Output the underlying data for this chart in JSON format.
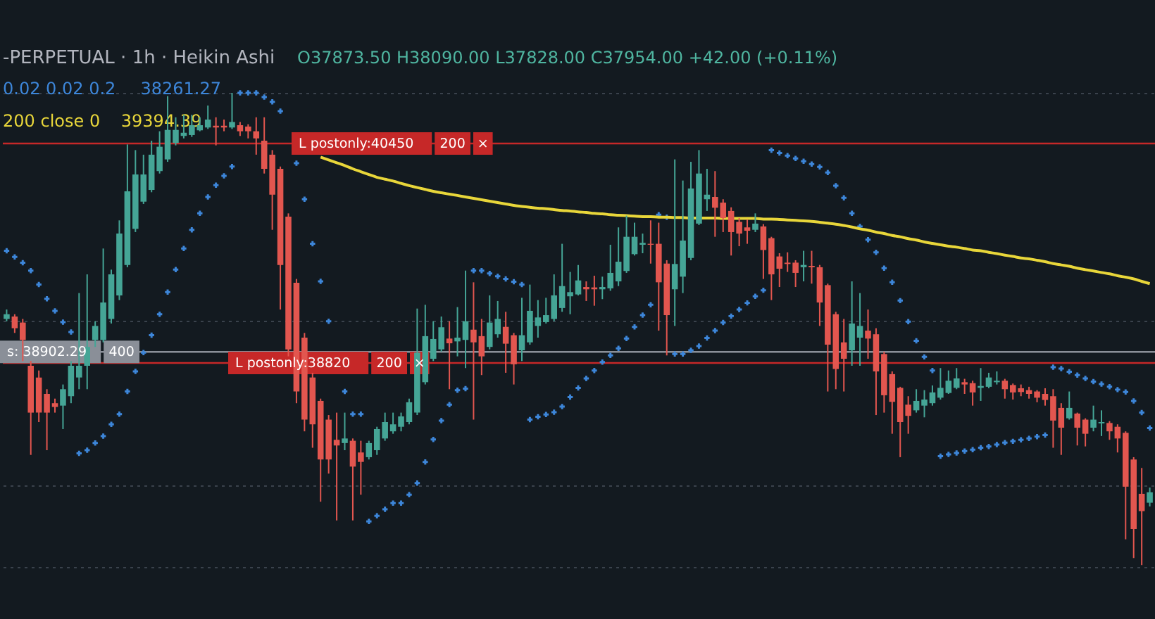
{
  "chart_data": {
    "type": "candlestick",
    "title": "-PERPETUAL · 1h · Heikin Ashi",
    "subtitle": "O37873.50 H38090.00 L37828.00 C37954.00 +42.00 (+0.11%)",
    "categories": [
      null,
      null,
      null,
      null,
      null,
      null,
      null,
      null,
      null,
      null,
      null,
      null,
      null,
      null,
      null,
      null,
      null,
      null,
      null,
      null,
      null,
      null,
      null,
      null,
      null,
      null,
      null,
      null,
      null,
      null,
      null,
      null,
      null,
      null,
      null,
      null,
      null,
      null,
      null,
      null,
      null,
      null,
      null,
      null,
      null,
      null,
      null,
      null,
      null,
      null,
      null,
      null,
      null,
      null,
      null,
      null,
      null,
      null,
      null,
      null,
      null,
      null,
      null,
      null,
      null,
      null,
      null,
      null,
      null,
      null,
      null,
      null,
      null,
      null,
      null,
      null,
      null,
      null,
      null,
      null,
      null,
      null,
      null,
      null,
      null,
      null,
      null,
      null,
      null,
      null,
      null,
      null,
      null,
      null,
      null,
      null,
      null,
      null,
      null,
      null,
      null,
      null,
      null,
      null,
      null,
      null,
      null,
      null,
      null,
      null,
      null,
      null,
      null,
      null,
      null,
      null,
      null,
      null,
      null,
      null,
      null,
      null,
      null,
      null,
      null,
      null,
      null,
      null,
      null,
      null,
      null,
      null,
      null,
      null,
      null,
      null,
      null,
      null,
      null,
      null,
      null,
      null,
      null
    ],
    "ohlc": [
      [
        39147,
        39217,
        39130,
        39182
      ],
      [
        39165,
        39182,
        39043,
        39078
      ],
      [
        39120,
        39147,
        38834,
        38991
      ],
      [
        38799,
        38834,
        38137,
        38451
      ],
      [
        38712,
        38764,
        38381,
        38451
      ],
      [
        38590,
        38625,
        38172,
        38451
      ],
      [
        38521,
        38555,
        38451,
        38493
      ],
      [
        38503,
        38660,
        38329,
        38625
      ],
      [
        38573,
        38834,
        38521,
        38799
      ],
      [
        38712,
        39339,
        38625,
        38799
      ],
      [
        38799,
        39478,
        38625,
        38939
      ],
      [
        38991,
        39130,
        38939,
        39095
      ],
      [
        38991,
        39670,
        38973,
        39269
      ],
      [
        39147,
        39513,
        39113,
        39478
      ],
      [
        39322,
        39879,
        39287,
        39781
      ],
      [
        39548,
        40443,
        39531,
        40095
      ],
      [
        39816,
        40401,
        39792,
        40220
      ],
      [
        40018,
        40367,
        40001,
        40220
      ],
      [
        40105,
        40471,
        40088,
        40367
      ],
      [
        40245,
        40541,
        40227,
        40426
      ],
      [
        40332,
        40802,
        40314,
        40551
      ],
      [
        40454,
        40645,
        40436,
        40551
      ],
      [
        40506,
        40663,
        40488,
        40530
      ],
      [
        40513,
        40663,
        40499,
        40586
      ],
      [
        40548,
        40645,
        40541,
        40586
      ],
      [
        40569,
        40732,
        40558,
        40628
      ],
      [
        40582,
        40645,
        40436,
        40569
      ],
      [
        40582,
        40628,
        40541,
        40569
      ],
      [
        40569,
        40826,
        40558,
        40610
      ],
      [
        40586,
        40610,
        40506,
        40541
      ],
      [
        40576,
        40593,
        40488,
        40541
      ],
      [
        40541,
        40645,
        40367,
        40488
      ],
      [
        40471,
        40645,
        40227,
        40262
      ],
      [
        40367,
        40401,
        39809,
        40070
      ],
      [
        40262,
        40279,
        39217,
        39548
      ],
      [
        39907,
        39931,
        38869,
        38921
      ],
      [
        39416,
        39444,
        38521,
        38608
      ],
      [
        39008,
        39043,
        38312,
        38399
      ],
      [
        38712,
        38747,
        38190,
        38364
      ],
      [
        38538,
        38555,
        37789,
        38103
      ],
      [
        38399,
        38433,
        37998,
        38103
      ],
      [
        38249,
        38451,
        37650,
        38207
      ],
      [
        38225,
        38451,
        38172,
        38259
      ],
      [
        38242,
        38259,
        37650,
        38050
      ],
      [
        38155,
        38242,
        37841,
        38085
      ],
      [
        38120,
        38242,
        38103,
        38225
      ],
      [
        38172,
        38346,
        38137,
        38329
      ],
      [
        38259,
        38451,
        38242,
        38381
      ],
      [
        38312,
        38451,
        38294,
        38364
      ],
      [
        38346,
        38451,
        38312,
        38423
      ],
      [
        38381,
        38555,
        38364,
        38528
      ],
      [
        38451,
        39224,
        38433,
        38897
      ],
      [
        38677,
        39252,
        38660,
        39019
      ],
      [
        38851,
        39130,
        38834,
        38998
      ],
      [
        38921,
        39165,
        38904,
        39085
      ],
      [
        39001,
        39130,
        38625,
        38966
      ],
      [
        38980,
        39235,
        38869,
        39008
      ],
      [
        38991,
        39506,
        38782,
        39130
      ],
      [
        39067,
        39419,
        38399,
        38973
      ],
      [
        39019,
        39147,
        38730,
        38869
      ],
      [
        38939,
        39322,
        38921,
        39120
      ],
      [
        39033,
        39280,
        39008,
        39147
      ],
      [
        39088,
        39200,
        38747,
        38963
      ],
      [
        39026,
        39043,
        38660,
        38810
      ],
      [
        38914,
        39304,
        38834,
        39026
      ],
      [
        38973,
        39402,
        38956,
        39207
      ],
      [
        39095,
        39287,
        39008,
        39158
      ],
      [
        39123,
        39304,
        39113,
        39175
      ],
      [
        39147,
        39478,
        39130,
        39322
      ],
      [
        39228,
        39705,
        39200,
        39391
      ],
      [
        39315,
        39496,
        39182,
        39346
      ],
      [
        39329,
        39548,
        39322,
        39433
      ],
      [
        39384,
        39426,
        39280,
        39367
      ],
      [
        39381,
        39468,
        39245,
        39367
      ],
      [
        39367,
        39461,
        39294,
        39384
      ],
      [
        39374,
        39698,
        39356,
        39489
      ],
      [
        39426,
        39827,
        39391,
        39572
      ],
      [
        39503,
        39914,
        39489,
        39757
      ],
      [
        39628,
        39862,
        39618,
        39757
      ],
      [
        39698,
        39781,
        39635,
        39712
      ],
      [
        39705,
        39879,
        39558,
        39698
      ],
      [
        39705,
        39862,
        39060,
        39419
      ],
      [
        39558,
        39583,
        38876,
        39175
      ],
      [
        39367,
        40332,
        39095,
        39555
      ],
      [
        39461,
        40175,
        39339,
        39729
      ],
      [
        39600,
        40314,
        39583,
        40116
      ],
      [
        39855,
        40401,
        39844,
        40227
      ],
      [
        40036,
        40262,
        39949,
        40070
      ],
      [
        40053,
        40245,
        39757,
        39973
      ],
      [
        40011,
        40036,
        39792,
        39896
      ],
      [
        39949,
        39976,
        39618,
        39792
      ],
      [
        39868,
        39896,
        39687,
        39781
      ],
      [
        39827,
        39886,
        39705,
        39802
      ],
      [
        39809,
        39931,
        39792,
        39855
      ],
      [
        39834,
        39851,
        39444,
        39659
      ],
      [
        39747,
        39757,
        39287,
        39478
      ],
      [
        39611,
        39635,
        39384,
        39520
      ],
      [
        39565,
        39642,
        39496,
        39555
      ],
      [
        39565,
        39583,
        39384,
        39489
      ],
      [
        39531,
        39653,
        39426,
        39548
      ],
      [
        39541,
        39653,
        39409,
        39531
      ],
      [
        39531,
        39548,
        39095,
        39269
      ],
      [
        39398,
        39409,
        38608,
        38956
      ],
      [
        39182,
        39200,
        38625,
        38775
      ],
      [
        38973,
        39147,
        38608,
        38851
      ],
      [
        38914,
        39426,
        38799,
        39113
      ],
      [
        39008,
        39339,
        38799,
        39095
      ],
      [
        39060,
        39217,
        38851,
        39001
      ],
      [
        39033,
        39078,
        38433,
        38757
      ],
      [
        38886,
        38904,
        38451,
        38580
      ],
      [
        38737,
        38757,
        38294,
        38531
      ],
      [
        38635,
        38643,
        38120,
        38381
      ],
      [
        38510,
        38573,
        38294,
        38427
      ],
      [
        38468,
        38625,
        38451,
        38538
      ],
      [
        38503,
        38618,
        38416,
        38548
      ],
      [
        38521,
        38653,
        38503,
        38601
      ],
      [
        38562,
        38782,
        38548,
        38635
      ],
      [
        38597,
        38764,
        38590,
        38688
      ],
      [
        38635,
        38782,
        38625,
        38705
      ],
      [
        38677,
        38702,
        38590,
        38660
      ],
      [
        38670,
        38688,
        38503,
        38601
      ],
      [
        38635,
        38782,
        38538,
        38649
      ],
      [
        38643,
        38747,
        38632,
        38712
      ],
      [
        38677,
        38757,
        38660,
        38688
      ],
      [
        38688,
        38702,
        38555,
        38625
      ],
      [
        38656,
        38667,
        38548,
        38601
      ],
      [
        38632,
        38660,
        38573,
        38604
      ],
      [
        38618,
        38643,
        38555,
        38590
      ],
      [
        38608,
        38618,
        38528,
        38562
      ],
      [
        38590,
        38632,
        38503,
        38545
      ],
      [
        38573,
        38625,
        38190,
        38392
      ],
      [
        38486,
        38521,
        38137,
        38339
      ],
      [
        38409,
        38608,
        38399,
        38486
      ],
      [
        38444,
        38451,
        38207,
        38339
      ],
      [
        38399,
        38409,
        38200,
        38294
      ],
      [
        38339,
        38503,
        38312,
        38399
      ],
      [
        38371,
        38468,
        38277,
        38381
      ],
      [
        38374,
        38388,
        38249,
        38312
      ],
      [
        38346,
        38364,
        38155,
        38259
      ],
      [
        38301,
        38312,
        37510,
        37901
      ],
      [
        38103,
        38120,
        37371,
        37587
      ],
      [
        37848,
        38040,
        37319,
        37719
      ],
      [
        37782,
        37894,
        37754,
        37859
      ]
    ],
    "colors": [
      "#45a596",
      "#e2564f",
      "#e2564f",
      "#e2564f",
      "#e2564f",
      "#e2564f",
      "#e2564f",
      "#45a596",
      "#45a596",
      "#45a596",
      "#45a596",
      "#45a596",
      "#45a596",
      "#45a596",
      "#45a596",
      "#45a596",
      "#45a596",
      "#45a596",
      "#45a596",
      "#45a596",
      "#45a596",
      "#45a596",
      "#45a596",
      "#45a596",
      "#45a596",
      "#45a596",
      "#e2564f",
      "#e2564f",
      "#45a596",
      "#e2564f",
      "#e2564f",
      "#e2564f",
      "#e2564f",
      "#e2564f",
      "#e2564f",
      "#e2564f",
      "#e2564f",
      "#e2564f",
      "#e2564f",
      "#e2564f",
      "#e2564f",
      "#e2564f",
      "#45a596",
      "#e2564f",
      "#e2564f",
      "#45a596",
      "#45a596",
      "#45a596",
      "#45a596",
      "#45a596",
      "#45a596",
      "#45a596",
      "#45a596",
      "#45a596",
      "#45a596",
      "#e2564f",
      "#45a596",
      "#45a596",
      "#e2564f",
      "#e2564f",
      "#45a596",
      "#45a596",
      "#e2564f",
      "#e2564f",
      "#45a596",
      "#45a596",
      "#45a596",
      "#45a596",
      "#45a596",
      "#45a596",
      "#45a596",
      "#45a596",
      "#e2564f",
      "#e2564f",
      "#45a596",
      "#45a596",
      "#45a596",
      "#45a596",
      "#45a596",
      "#45a596",
      "#e2564f",
      "#e2564f",
      "#e2564f",
      "#45a596",
      "#45a596",
      "#45a596",
      "#45a596",
      "#45a596",
      "#e2564f",
      "#e2564f",
      "#e2564f",
      "#e2564f",
      "#e2564f",
      "#45a596",
      "#e2564f",
      "#e2564f",
      "#e2564f",
      "#e2564f",
      "#e2564f",
      "#45a596",
      "#e2564f",
      "#e2564f",
      "#e2564f",
      "#e2564f",
      "#e2564f",
      "#45a596",
      "#45a596",
      "#e2564f",
      "#e2564f",
      "#e2564f",
      "#e2564f",
      "#e2564f",
      "#e2564f",
      "#45a596",
      "#45a596",
      "#45a596",
      "#45a596",
      "#45a596",
      "#45a596",
      "#e2564f",
      "#e2564f",
      "#45a596",
      "#45a596",
      "#45a596",
      "#e2564f",
      "#e2564f",
      "#e2564f",
      "#e2564f",
      "#e2564f",
      "#e2564f",
      "#e2564f",
      "#e2564f",
      "#45a596",
      "#e2564f",
      "#e2564f",
      "#45a596",
      "#45a596",
      "#e2564f",
      "#e2564f",
      "#e2564f",
      "#e2564f",
      "#e2564f",
      "#45a596"
    ],
    "series": [
      {
        "name": "0.02 0.02 0.2",
        "type": "scatter",
        "marker": "cross",
        "color": "#3d86d9",
        "values": [
          39653,
          39607,
          39565,
          39506,
          39402,
          39297,
          39207,
          39123,
          39050,
          38148,
          38172,
          38225,
          38277,
          38364,
          38440,
          38608,
          38757,
          38897,
          39026,
          39182,
          39346,
          39513,
          39670,
          39809,
          39931,
          40053,
          40140,
          40210,
          40279,
          40826,
          40826,
          40826,
          40795,
          40760,
          40690,
          null,
          40304,
          40036,
          39705,
          39426,
          39130,
          null,
          38608,
          38440,
          38440,
          37643,
          37685,
          37733,
          37779,
          37779,
          37841,
          37928,
          38085,
          38252,
          38392,
          38510,
          38618,
          38629,
          39506,
          39506,
          39485,
          39464,
          39444,
          39423,
          39402,
          38399,
          38420,
          38437,
          38454,
          38496,
          38566,
          38635,
          38705,
          38764,
          38827,
          38876,
          38928,
          39001,
          39088,
          39175,
          39252,
          39921,
          39903,
          38886,
          38886,
          38914,
          38945,
          39005,
          39060,
          39120,
          39168,
          39217,
          39266,
          39315,
          39360,
          40401,
          40380,
          40360,
          40339,
          40318,
          40297,
          40276,
          40234,
          40137,
          40046,
          39931,
          39834,
          39736,
          39642,
          39524,
          39419,
          39283,
          39127,
          38984,
          38865,
          38764,
          38127,
          38141,
          38151,
          38165,
          38176,
          38190,
          38200,
          38214,
          38228,
          38238,
          38249,
          38259,
          38273,
          38284,
          38789,
          38778,
          38754,
          38730,
          38705,
          38681,
          38663,
          38643,
          38622,
          38604,
          38538,
          38451,
          38336
        ]
      },
      {
        "name": "200 close 0",
        "type": "line",
        "line_style": "solid",
        "color": "#e8d63a",
        "values": [
          null,
          null,
          null,
          null,
          null,
          null,
          null,
          null,
          null,
          null,
          null,
          null,
          null,
          null,
          null,
          null,
          null,
          null,
          null,
          null,
          null,
          null,
          null,
          null,
          null,
          null,
          null,
          null,
          null,
          null,
          null,
          null,
          null,
          null,
          null,
          null,
          null,
          null,
          null,
          40349,
          40328,
          40307,
          40286,
          40262,
          40241,
          40220,
          40199,
          40185,
          40171,
          40154,
          40137,
          40123,
          40109,
          40095,
          40084,
          40074,
          40064,
          40053,
          40043,
          40032,
          40022,
          40011,
          40001,
          39990,
          39983,
          39976,
          39969,
          39966,
          39959,
          39952,
          39949,
          39942,
          39938,
          39931,
          39928,
          39921,
          39917,
          39914,
          39910,
          39907,
          39907,
          39903,
          39903,
          39900,
          39900,
          39896,
          39896,
          39896,
          39896,
          39893,
          39893,
          39893,
          39893,
          39893,
          39889,
          39889,
          39886,
          39882,
          39879,
          39875,
          39872,
          39865,
          39858,
          39851,
          39841,
          39830,
          39816,
          39806,
          39792,
          39781,
          39767,
          39757,
          39743,
          39733,
          39719,
          39708,
          39698,
          39687,
          39680,
          39670,
          39659,
          39653,
          39642,
          39632,
          39621,
          39611,
          39600,
          39593,
          39583,
          39572,
          39558,
          39548,
          39538,
          39524,
          39513,
          39503,
          39492,
          39482,
          39468,
          39457,
          39444,
          39426,
          39409
        ]
      }
    ],
    "ref_lines": [
      {
        "axis": "y",
        "value": 40450,
        "label": "L postonly:40450",
        "color": "#c62828"
      },
      {
        "axis": "y",
        "value": 38902.29,
        "label": "s: 38902.29",
        "color": "#8a8f98"
      },
      {
        "axis": "y",
        "value": 38820,
        "label": "L postonly:38820",
        "color": "#c62828"
      }
    ],
    "annotations": [
      "38261.27",
      "39394.39",
      {
        "text": "200",
        "y": 40450
      },
      {
        "text": "×",
        "y": 40450
      },
      {
        "text": "400",
        "y": 38902.29
      },
      {
        "text": "200",
        "y": 38820
      },
      {
        "text": "×",
        "y": 38820
      }
    ],
    "ylim": [
      36918,
      41516
    ],
    "yticks": [
      {
        "value": 37305,
        "label": null
      },
      {
        "value": 37911,
        "label": null
      },
      {
        "value": 39133,
        "label": null
      },
      {
        "value": 40826,
        "label": null
      }
    ],
    "grid": "y"
  }
}
